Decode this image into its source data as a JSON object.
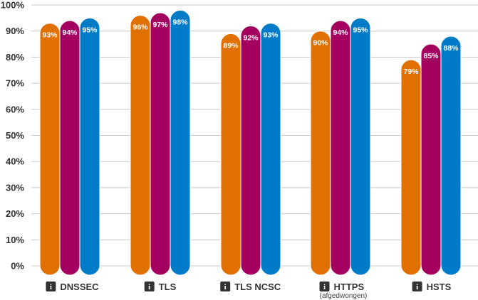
{
  "chart_data": {
    "type": "bar",
    "categories": [
      "DNSSEC",
      "TLS",
      "TLS NCSC",
      "HTTPS",
      "HSTS"
    ],
    "category_sublabels": [
      "",
      "",
      "",
      "(afgedwongen)",
      ""
    ],
    "info_icon": "info-icon",
    "series_colors": [
      "#e07000",
      "#a3005f",
      "#007bc7"
    ],
    "series": [
      {
        "values": [
          93,
          96,
          89,
          90,
          79
        ]
      },
      {
        "values": [
          94,
          97,
          92,
          94,
          85
        ]
      },
      {
        "values": [
          95,
          98,
          93,
          95,
          88
        ]
      }
    ],
    "data_labels": [
      [
        "93%",
        "96%",
        "89%",
        "90%",
        "79%"
      ],
      [
        "94%",
        "97%",
        "92%",
        "94%",
        "85%"
      ],
      [
        "95%",
        "98%",
        "93%",
        "95%",
        "88%"
      ]
    ],
    "y_ticks": [
      0,
      10,
      20,
      30,
      40,
      50,
      60,
      70,
      80,
      90,
      100
    ],
    "y_tick_labels": [
      "0%",
      "10%",
      "20%",
      "30%",
      "40%",
      "50%",
      "60%",
      "70%",
      "80%",
      "90%",
      "100%"
    ],
    "ylim": [
      0,
      100
    ],
    "grid": true,
    "legend": "none",
    "title": "",
    "xlabel": "",
    "ylabel": ""
  }
}
